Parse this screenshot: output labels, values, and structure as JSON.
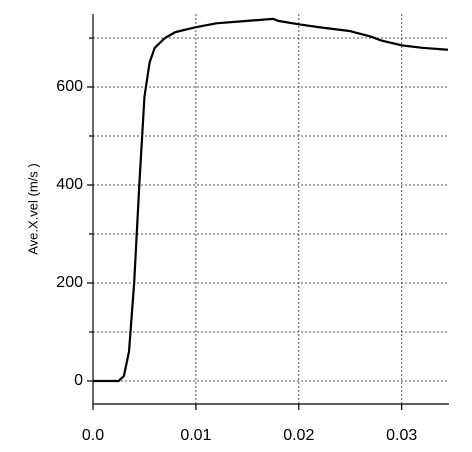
{
  "chart_data": {
    "type": "line",
    "y_label": "Ave.X.vel (m/s )",
    "x": [
      0,
      0.0025,
      0.003,
      0.0035,
      0.004,
      0.0045,
      0.005,
      0.0055,
      0.006,
      0.007,
      0.008,
      0.01,
      0.012,
      0.015,
      0.0175,
      0.018,
      0.02,
      0.022,
      0.025,
      0.027,
      0.028,
      0.03,
      0.032,
      0.0345
    ],
    "series": [
      {
        "color": "#000000",
        "values": [
          0,
          0,
          10,
          60,
          200,
          400,
          580,
          650,
          680,
          700,
          712,
          722,
          730,
          735,
          739,
          735,
          728,
          722,
          714,
          703,
          695,
          685,
          680,
          676
        ]
      }
    ],
    "xlim": [
      0,
      0.0346
    ],
    "xticks": [
      {
        "value": 0,
        "label": "0.0"
      },
      0.01,
      0.02,
      0.03
    ],
    "ylim": [
      -47,
      749
    ],
    "yticks": [
      0,
      200,
      400,
      600
    ],
    "minor_yticks": [
      100,
      300,
      500,
      700
    ],
    "grid": true
  }
}
